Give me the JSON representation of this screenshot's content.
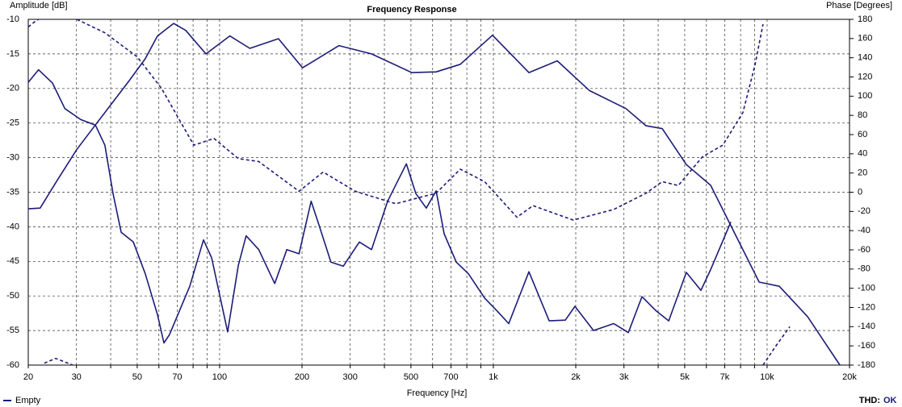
{
  "chart_data": {
    "type": "line",
    "title": "Frequency Response",
    "y_label": "Amplitude [dB]",
    "y2_label": "Phase [Degrees]",
    "x_label": "Frequency [Hz]",
    "log_x": true,
    "grid": true,
    "legend": "bottom-left",
    "status_label": "THD:",
    "status": "OK",
    "xlim": [
      20,
      20000
    ],
    "xticks": [
      20,
      30,
      {
        "value": 40,
        "label": null
      },
      50,
      {
        "value": 60,
        "label": null
      },
      70,
      {
        "value": 80,
        "label": null
      },
      {
        "value": 90,
        "label": null
      },
      100,
      200,
      300,
      {
        "value": 400,
        "label": null
      },
      500,
      {
        "value": 600,
        "label": null
      },
      700,
      {
        "value": 800,
        "label": null
      },
      {
        "value": 900,
        "label": null
      },
      {
        "value": 1000,
        "label": "1k"
      },
      {
        "value": 2000,
        "label": "2k"
      },
      {
        "value": 3000,
        "label": "3k"
      },
      {
        "value": 4000,
        "label": null
      },
      {
        "value": 5000,
        "label": "5k"
      },
      {
        "value": 6000,
        "label": null
      },
      {
        "value": 7000,
        "label": "7k"
      },
      {
        "value": 8000,
        "label": null
      },
      {
        "value": 9000,
        "label": null
      },
      {
        "value": 10000,
        "label": "10k"
      },
      {
        "value": 20000,
        "label": "20k"
      }
    ],
    "ylim": [
      -60,
      -10
    ],
    "yticks": [
      -10,
      -15,
      -20,
      -25,
      -30,
      -35,
      -40,
      -45,
      -50,
      -55,
      -60
    ],
    "y2lim": [
      -180,
      180
    ],
    "y2ticks": [
      180,
      160,
      140,
      120,
      100,
      80,
      60,
      40,
      20,
      0,
      -20,
      -40,
      -60,
      -80,
      -100,
      -120,
      -140,
      -160,
      -180
    ],
    "series": [
      {
        "name": "Empty",
        "color": "#1c1c78",
        "dash": false,
        "x": [
          20,
          22.1,
          25.4,
          30.1,
          35.6,
          46.7,
          53.5,
          59.3,
          67.9,
          75.2,
          89.1,
          109,
          129,
          164,
          201,
          273,
          359,
          504,
          618,
          757,
          993,
          1349,
          1712,
          2245,
          3050,
          3615,
          4140,
          5070,
          6220,
          9350,
          11080,
          14060,
          18450
        ],
        "values": [
          -37.4,
          -37.3,
          -33.4,
          -28.8,
          -25,
          -18.9,
          -15.7,
          -12.4,
          -10.6,
          -11.6,
          -15,
          -12.4,
          -14.2,
          -12.8,
          -17,
          -13.8,
          -15,
          -17.7,
          -17.6,
          -16.5,
          -12.3,
          -17.7,
          -16,
          -20.3,
          -22.9,
          -25.4,
          -25.8,
          -31,
          -34,
          -48,
          -48.6,
          -53,
          -60
        ]
      },
      {
        "color": "#1c1c78",
        "dash": true,
        "axis": "y2",
        "x": [
          20,
          21,
          21.8,
          null,
          22.9,
          25.2,
          29.1,
          null,
          30.1,
          38.1,
          50,
          61.4,
          80.5,
          95.4,
          117,
          139,
          195,
          239,
          313,
          440,
          618,
          757,
          929,
          1219,
          1396,
          1959,
          2752,
          3615,
          4140,
          4740,
          5810,
          6890,
          8160,
          9040,
          9660,
          null,
          9660,
          10710,
          12110
        ],
        "values": [
          172,
          177,
          180,
          null,
          -178,
          -173,
          -180,
          null,
          180,
          166,
          141,
          108,
          49,
          56,
          35,
          32,
          1,
          21,
          1,
          -12,
          -1,
          24,
          11,
          -26,
          -14,
          -29,
          -18,
          -1,
          11,
          7,
          37,
          49,
          83,
          133,
          175,
          null,
          -180,
          -161,
          -140
        ]
      },
      {
        "color": "#1c1c78",
        "dash": false,
        "x": [
          20,
          21.8,
          24.5,
          27.2,
          31.1,
          35.2,
          38.1,
          40.8,
          43.7,
          48.4,
          53.5,
          59.3,
          62.6,
          65.6,
          77.8,
          87.3,
          93.5,
          107,
          117,
          125,
          139,
          159,
          176,
          195,
          216,
          231,
          255,
          283,
          324,
          359,
          411,
          481,
          521,
          569,
          618,
          661,
          732,
          811,
          929,
          1028,
          1138,
          1349,
          1600,
          1832,
          1986,
          2323,
          2752,
          3113,
          3491,
          3918,
          4370,
          5070,
          5730,
          6220,
          7370
        ],
        "values": [
          -19.1,
          -17.3,
          -19.2,
          -22.9,
          -24.5,
          -25.3,
          -28.2,
          -35.2,
          -40.8,
          -42.2,
          -46.8,
          -52.7,
          -56.8,
          -55.6,
          -48.6,
          -41.9,
          -44.5,
          -55.2,
          -45.6,
          -41.3,
          -43.3,
          -48.2,
          -43.3,
          -43.9,
          -36.3,
          -39.8,
          -45.1,
          -45.7,
          -42.2,
          -43.3,
          -36.3,
          -30.9,
          -35.2,
          -37.3,
          -34.8,
          -41,
          -45.1,
          -46.8,
          -50.3,
          -52.1,
          -54,
          -46.5,
          -53.6,
          -53.5,
          -51.5,
          -55,
          -54,
          -55.3,
          -50.1,
          -52.1,
          -53.6,
          -46.6,
          -49.2,
          -46.2,
          -39.3
        ]
      }
    ]
  }
}
